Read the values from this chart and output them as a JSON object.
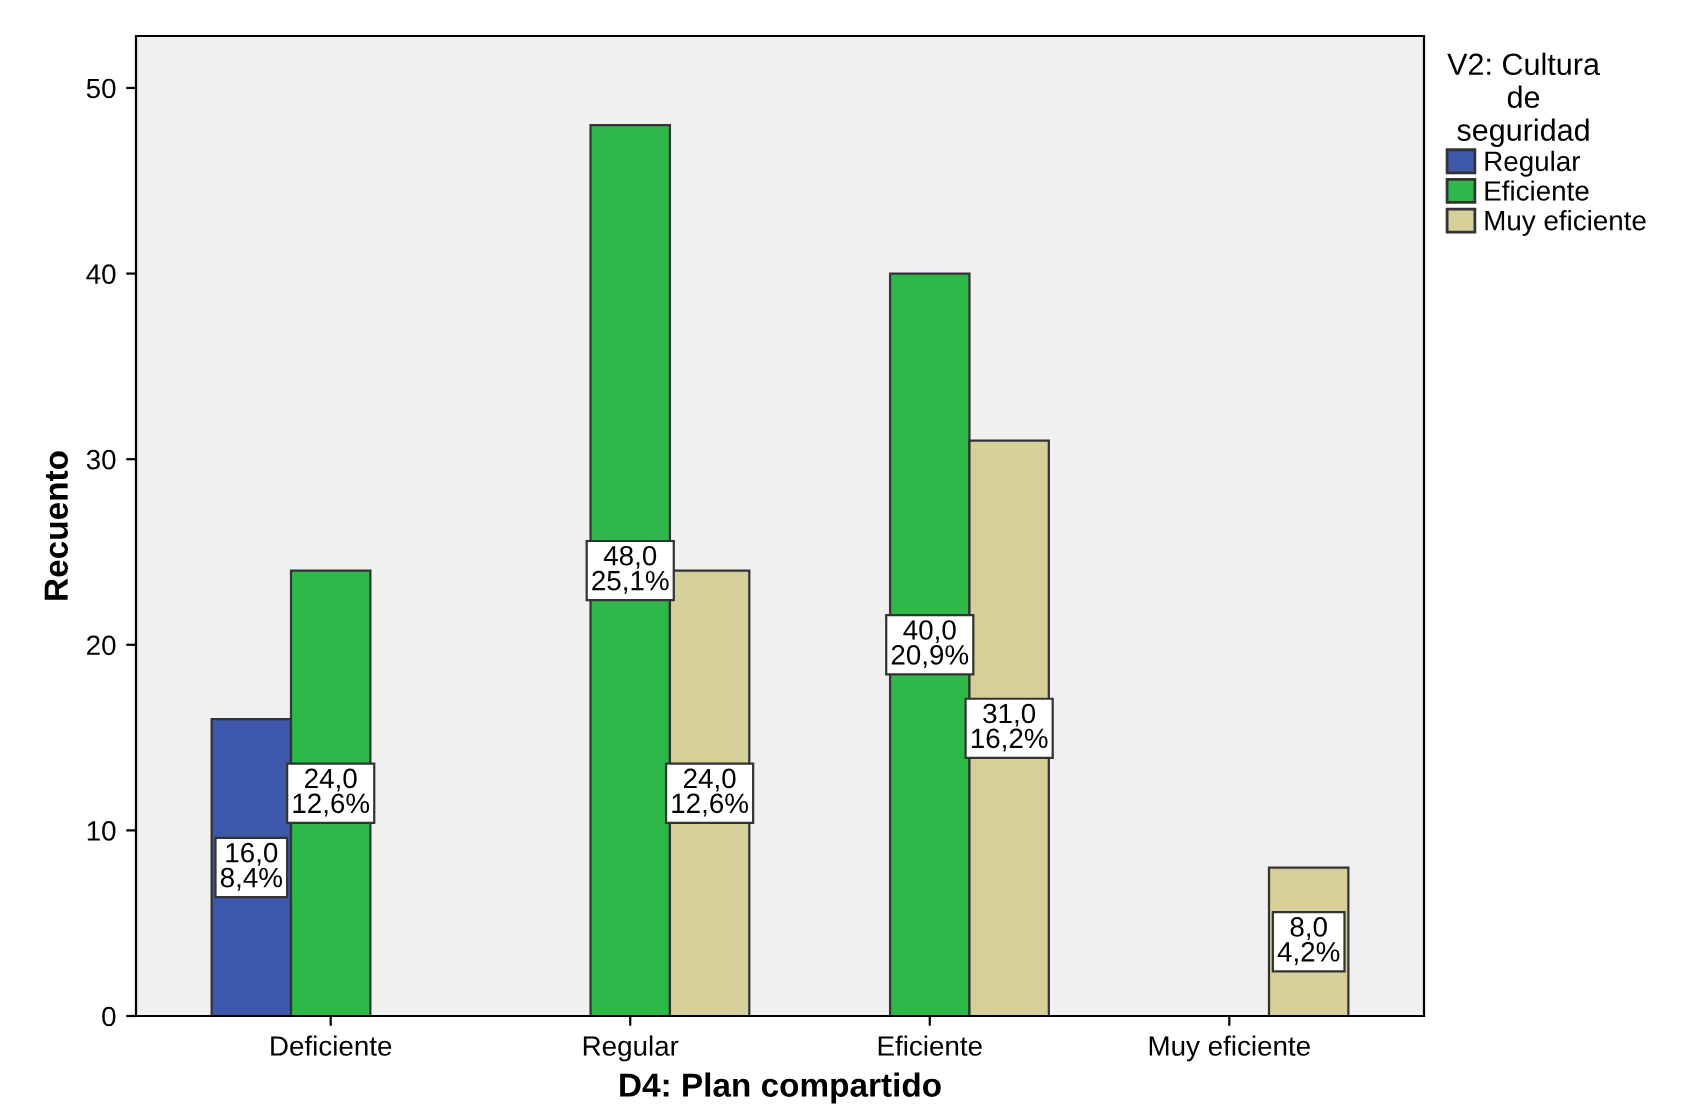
{
  "chart_data": {
    "type": "bar",
    "xlabel": "D4: Plan compartido",
    "ylabel": "Recuento",
    "legend_title": "V2: Cultura\nde\nseguridad",
    "categories": [
      "Deficiente",
      "Regular",
      "Eficiente",
      "Muy eficiente"
    ],
    "series": [
      {
        "name": "Regular",
        "color": "#3e58ac",
        "values": [
          16,
          null,
          null,
          null
        ],
        "value_labels": [
          "16,0\n8,4%",
          null,
          null,
          null
        ]
      },
      {
        "name": "Eficiente",
        "color": "#2fb84a",
        "values": [
          24,
          48,
          40,
          null
        ],
        "value_labels": [
          "24,0\n12,6%",
          "48,0\n25,1%",
          "40,0\n20,9%",
          null
        ]
      },
      {
        "name": "Muy eficiente",
        "color": "#d6cf9a",
        "values": [
          null,
          24,
          31,
          8
        ],
        "value_labels": [
          null,
          "24,0\n12,6%",
          "31,0\n16,2%",
          "8,0\n4,2%"
        ]
      }
    ],
    "ylim": [
      0,
      52.8
    ],
    "yticks": [
      0,
      10,
      20,
      30,
      40,
      50
    ],
    "grid": false,
    "legend": "top right"
  }
}
